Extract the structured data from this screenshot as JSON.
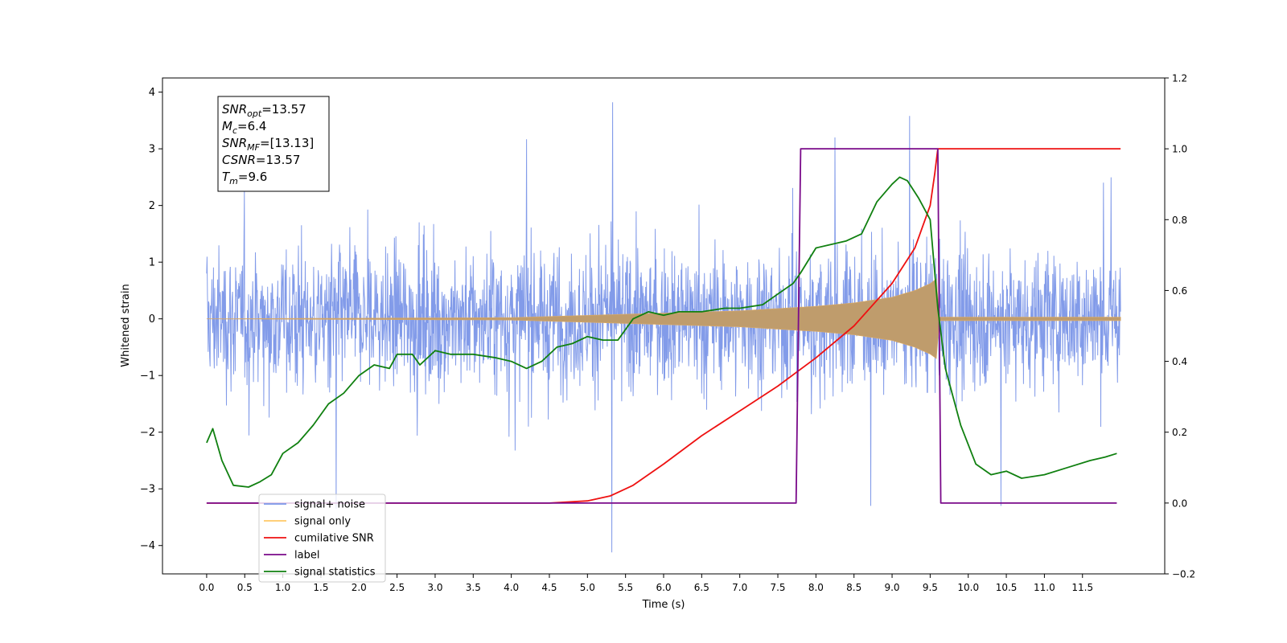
{
  "chart_data": {
    "type": "line",
    "xlabel": "Time (s)",
    "ylabel": "Whitened strain",
    "xlim": [
      -0.58,
      12.58
    ],
    "ylim": [
      -4.5,
      4.25
    ],
    "y2lim": [
      -0.2,
      1.2
    ],
    "x_ticks": [
      0.0,
      0.5,
      1.0,
      1.5,
      2.0,
      2.5,
      3.0,
      3.5,
      4.0,
      4.5,
      5.0,
      5.5,
      6.0,
      6.5,
      7.0,
      7.5,
      8.0,
      8.5,
      9.0,
      9.5,
      10.0,
      10.5,
      11.0,
      11.5
    ],
    "x_tick_labels": [
      "0.0",
      "0.5",
      "1.0",
      "1.5",
      "2.0",
      "2.5",
      "3.0",
      "3.5",
      "4.0",
      "4.5",
      "5.0",
      "5.5",
      "6.0",
      "6.5",
      "7.0",
      "7.5",
      "8.0",
      "8.5",
      "9.0",
      "9.5",
      "10.0",
      "10.5",
      "11.0",
      "11.5"
    ],
    "y_ticks": [
      -4,
      -3,
      -2,
      -1,
      0,
      1,
      2,
      3,
      4
    ],
    "y_tick_labels": [
      "−4",
      "−3",
      "−2",
      "−1",
      "0",
      "1",
      "2",
      "3",
      "4"
    ],
    "y2_ticks": [
      -0.2,
      0.0,
      0.2,
      0.4,
      0.6,
      0.8,
      1.0,
      1.2
    ],
    "y2_tick_labels": [
      "−0.2",
      "0.0",
      "0.2",
      "0.4",
      "0.6",
      "0.8",
      "1.0",
      "1.2"
    ],
    "grid": false,
    "legend_position": "lower-left",
    "annotation": [
      {
        "sym": "SNR",
        "sub": "opt",
        "rest": "=13.57"
      },
      {
        "sym": "M",
        "sub": "c",
        "rest": "=6.4"
      },
      {
        "sym": "SNR",
        "sub": "MF",
        "rest": "=[13.13]"
      },
      {
        "sym": "CSNR",
        "sub": "",
        "rest": "=13.57"
      },
      {
        "sym": "T",
        "sub": "m",
        "rest": "=9.6"
      }
    ],
    "series": [
      {
        "name": "signal+ noise",
        "color": "#7b96e8",
        "axis": "left",
        "description_values": "noise band approx ±1.5 typical with spikes to ±3.8, t=0..12",
        "x_range": [
          0.0,
          12.0
        ],
        "spikes": [
          [
            5.33,
            3.82
          ],
          [
            5.32,
            -4.12
          ],
          [
            9.23,
            3.58
          ],
          [
            8.25,
            3.2
          ],
          [
            4.2,
            3.17
          ],
          [
            1.7,
            -3.35
          ],
          [
            10.43,
            -3.3
          ],
          [
            8.72,
            -3.3
          ]
        ]
      },
      {
        "name": "signal only",
        "color": "#c8a070",
        "axis": "left",
        "x": [
          0.0,
          4.0,
          5.0,
          6.0,
          7.0,
          7.5,
          8.0,
          8.5,
          9.0,
          9.3,
          9.5,
          9.58,
          9.62,
          12.0
        ],
        "envelope": [
          0.0,
          0.02,
          0.06,
          0.1,
          0.14,
          0.18,
          0.22,
          0.28,
          0.38,
          0.5,
          0.62,
          0.7,
          0.03,
          0.03
        ]
      },
      {
        "name": "cumilative SNR",
        "color": "#ee1111",
        "axis": "right",
        "x": [
          0.0,
          4.0,
          4.5,
          5.0,
          5.3,
          5.6,
          6.0,
          6.5,
          7.0,
          7.5,
          8.0,
          8.5,
          9.0,
          9.3,
          9.5,
          9.56,
          9.6,
          12.0
        ],
        "values": [
          0.0,
          0.0,
          0.0,
          0.006,
          0.02,
          0.05,
          0.11,
          0.19,
          0.26,
          0.33,
          0.41,
          0.5,
          0.62,
          0.72,
          0.84,
          0.93,
          1.0,
          1.0
        ]
      },
      {
        "name": "label",
        "color": "#7a0a8a",
        "axis": "right",
        "x": [
          0.0,
          7.74,
          7.8,
          9.6,
          9.64,
          11.95
        ],
        "values": [
          0.0,
          0.0,
          1.0,
          1.0,
          0.0,
          0.0
        ]
      },
      {
        "name": "signal statistics",
        "color": "#108010",
        "axis": "right",
        "x": [
          0.0,
          0.08,
          0.2,
          0.35,
          0.55,
          0.7,
          0.85,
          1.0,
          1.2,
          1.4,
          1.6,
          1.8,
          2.0,
          2.2,
          2.4,
          2.5,
          2.7,
          2.8,
          3.0,
          3.2,
          3.5,
          3.8,
          4.0,
          4.2,
          4.4,
          4.6,
          4.8,
          5.0,
          5.2,
          5.4,
          5.6,
          5.8,
          6.0,
          6.2,
          6.5,
          6.8,
          7.0,
          7.3,
          7.5,
          7.7,
          7.8,
          8.0,
          8.2,
          8.4,
          8.6,
          8.8,
          9.0,
          9.1,
          9.2,
          9.35,
          9.5,
          9.6,
          9.7,
          9.9,
          10.1,
          10.3,
          10.5,
          10.7,
          11.0,
          11.3,
          11.6,
          11.8,
          11.95
        ],
        "values": [
          0.17,
          0.21,
          0.12,
          0.05,
          0.045,
          0.06,
          0.08,
          0.14,
          0.17,
          0.22,
          0.28,
          0.31,
          0.36,
          0.39,
          0.38,
          0.42,
          0.42,
          0.39,
          0.43,
          0.42,
          0.42,
          0.41,
          0.4,
          0.38,
          0.4,
          0.44,
          0.45,
          0.47,
          0.46,
          0.46,
          0.52,
          0.54,
          0.53,
          0.54,
          0.54,
          0.55,
          0.55,
          0.56,
          0.59,
          0.62,
          0.65,
          0.72,
          0.73,
          0.74,
          0.76,
          0.85,
          0.9,
          0.92,
          0.91,
          0.86,
          0.8,
          0.55,
          0.38,
          0.22,
          0.11,
          0.08,
          0.09,
          0.07,
          0.08,
          0.1,
          0.12,
          0.13,
          0.14
        ]
      }
    ]
  }
}
